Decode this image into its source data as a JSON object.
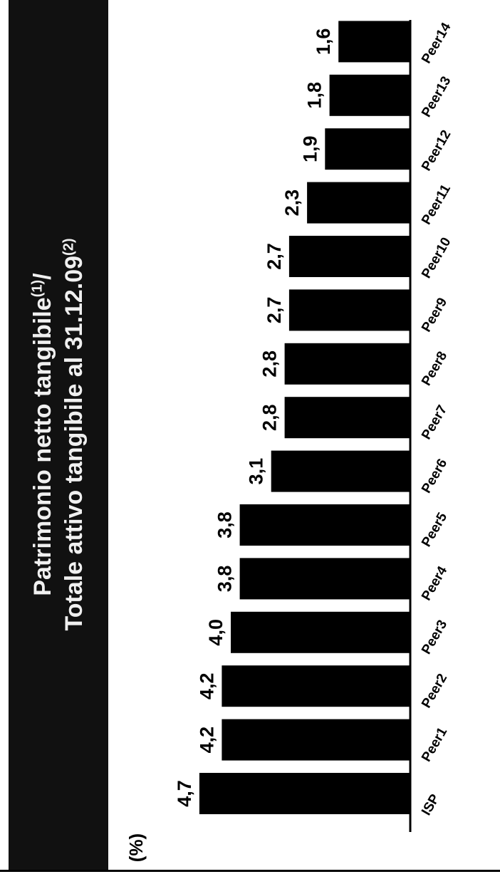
{
  "title": {
    "line1": "Patrimonio netto tangibile",
    "line1_sup": "(1)",
    "line1_suffix": "/",
    "line2": "Totale attivo tangibile al 31.12.09",
    "line2_sup": "(2)"
  },
  "chart_data": {
    "type": "bar",
    "orientation": "horizontal",
    "unit_label": "(%)",
    "categories": [
      "ISP",
      "Peer1",
      "Peer2",
      "Peer3",
      "Peer4",
      "Peer5",
      "Peer6",
      "Peer7",
      "Peer8",
      "Peer9",
      "Peer10",
      "Peer11",
      "Peer12",
      "Peer13",
      "Peer14"
    ],
    "values": [
      4.7,
      4.2,
      4.2,
      4.0,
      3.8,
      3.8,
      3.1,
      2.8,
      2.8,
      2.7,
      2.7,
      2.3,
      1.9,
      1.8,
      1.6
    ],
    "value_labels": [
      "4,7",
      "4,2",
      "4,2",
      "4,0",
      "3,8",
      "3,8",
      "3,1",
      "2,8",
      "2,8",
      "2,7",
      "2,7",
      "2,3",
      "1,9",
      "1,8",
      "1,6"
    ],
    "bar_color": "#000000",
    "grid": false,
    "legend": "none"
  }
}
